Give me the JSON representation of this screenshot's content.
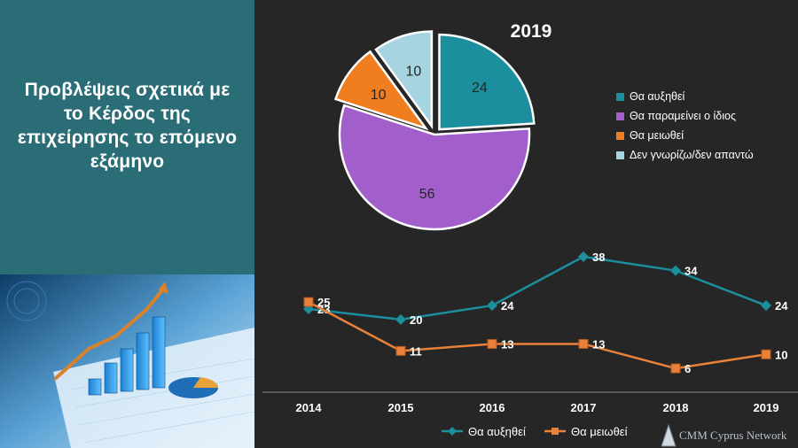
{
  "slide": {
    "title_lines": [
      "Προβλέψεις σχετικά με",
      "το Κέρδος της",
      "επιχείρησης το επόμενο",
      "εξάμηνο"
    ]
  },
  "chart_data": [
    {
      "type": "pie",
      "title": "2019",
      "categories": [
        "Θα αυξηθεί",
        "Θα παραμείνει ο ίδιος",
        "Θα μειωθεί",
        "Δεν γνωρίζω/δεν απαντώ"
      ],
      "values": [
        24,
        56,
        10,
        10
      ],
      "colors": [
        "#1b8f9e",
        "#a25fcb",
        "#f07d1f",
        "#a6d4e0"
      ],
      "exploded": true,
      "legend": "right"
    },
    {
      "type": "line",
      "categories": [
        "2014",
        "2015",
        "2016",
        "2017",
        "2018",
        "2019"
      ],
      "series": [
        {
          "name": "Θα αυξηθεί",
          "values": [
            23,
            20,
            24,
            38,
            34,
            24
          ],
          "color": "#1b8f9e",
          "marker": "diamond"
        },
        {
          "name": "Θα μειωθεί",
          "values": [
            25,
            11,
            13,
            13,
            6,
            10
          ],
          "color": "#e8813a",
          "marker": "square"
        }
      ],
      "data_labels": true,
      "legend": "bottom",
      "grid": false
    }
  ],
  "logo": {
    "text": "Cyprus Network",
    "prefix": "CMM"
  }
}
